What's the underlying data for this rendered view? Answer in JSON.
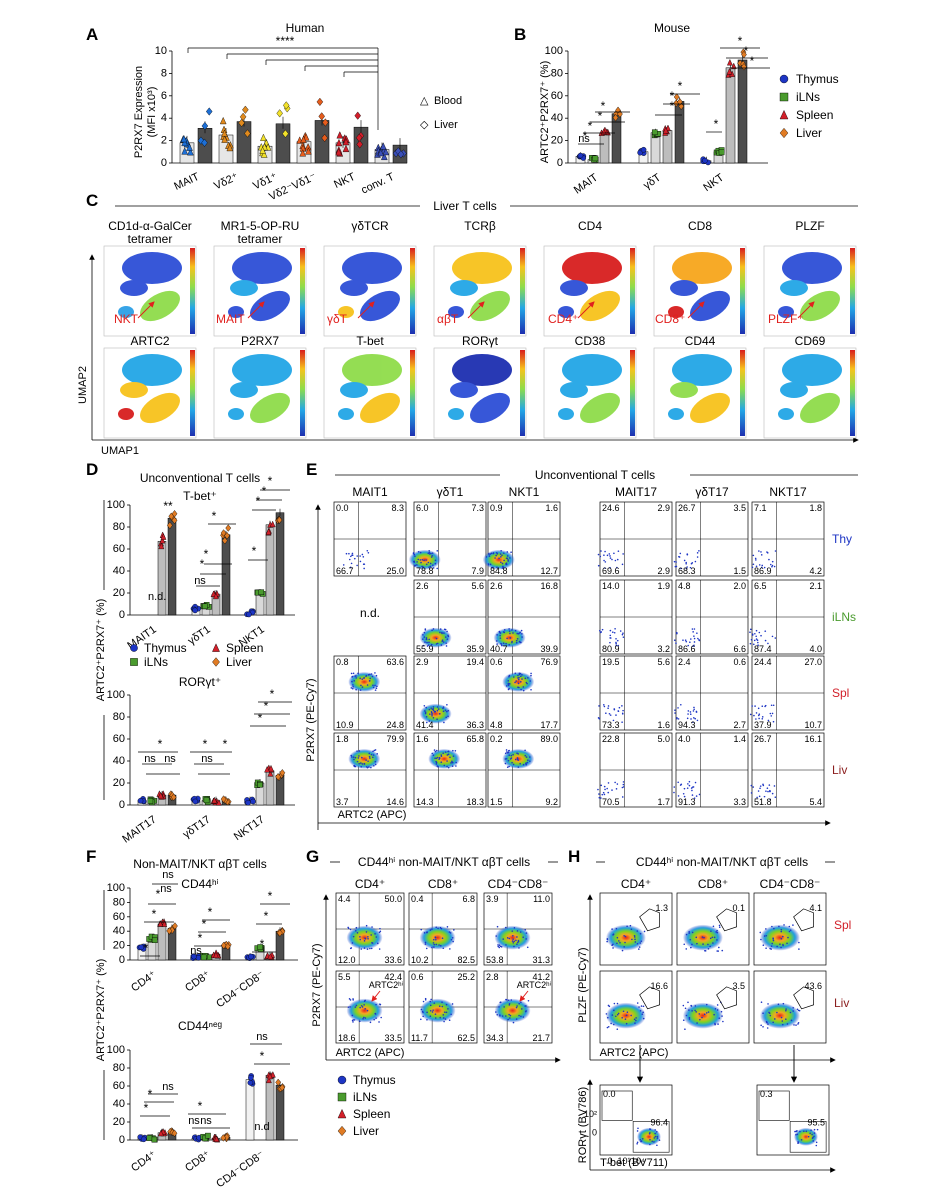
{
  "colors": {
    "thymus": "#1d35c4",
    "ilns": "#4a9b2e",
    "spleen": "#d2202a",
    "liver": "#e07b24",
    "barLight": "#d9d9d9",
    "barDark": "#4d4d4d",
    "red": "#e0201e"
  },
  "panelA": {
    "letter": "A",
    "title": "Human",
    "ylabel": "P2RX7 Expression",
    "ylabel2": "(MFI x10³)",
    "yticks": [
      "0",
      "2",
      "4",
      "6",
      "8",
      "10"
    ],
    "ylim": [
      0,
      10
    ],
    "sig": "****",
    "legend": [
      {
        "symbol": "△",
        "label": "Blood"
      },
      {
        "symbol": "◇",
        "label": "Liver"
      }
    ],
    "chart_data": {
      "type": "bar",
      "ylim": [
        0,
        10
      ],
      "categories": [
        "MAIT",
        "Vδ2⁺",
        "Vδ1⁺",
        "Vδ2⁻Vδ1⁻",
        "NKT",
        "conv. T"
      ],
      "series": [
        {
          "name": "Blood",
          "values": [
            1.8,
            2.5,
            1.5,
            1.9,
            1.8,
            1.2
          ]
        },
        {
          "name": "Liver",
          "values": [
            3.1,
            3.7,
            3.5,
            3.8,
            3.2,
            1.6
          ]
        }
      ]
    }
  },
  "panelB": {
    "letter": "B",
    "title": "Mouse",
    "ylabel": "ARTC2⁺P2RX7⁺ (%)",
    "yticks": [
      "0",
      "20",
      "40",
      "60",
      "80",
      "100"
    ],
    "ns": "ns",
    "star": "*",
    "legend": [
      {
        "label": "Thymus",
        "color": "thymus"
      },
      {
        "label": "iLNs",
        "color": "ilns"
      },
      {
        "label": "Spleen",
        "color": "spleen"
      },
      {
        "label": "Liver",
        "color": "liver"
      }
    ],
    "chart_data": {
      "type": "bar",
      "ylim": [
        0,
        100
      ],
      "categories": [
        "MAIT",
        "γδT",
        "NKT"
      ],
      "series": [
        {
          "name": "Thymus",
          "values": [
            6,
            10,
            2
          ]
        },
        {
          "name": "iLNs",
          "values": [
            3,
            27,
            10
          ]
        },
        {
          "name": "Spleen",
          "values": [
            27,
            29,
            85
          ]
        },
        {
          "name": "Liver",
          "values": [
            44,
            55,
            92
          ]
        }
      ]
    }
  },
  "panelC": {
    "letter": "C",
    "header": "Liver T cells",
    "yaxis": "UMAP2",
    "xaxis": "UMAP1",
    "row1": [
      {
        "title": "CD1d-α-GalCer",
        "title2": "tetramer",
        "tag": "NKT"
      },
      {
        "title": "MR1-5-OP-RU",
        "title2": "tetramer",
        "tag": "MAIT"
      },
      {
        "title": "γδTCR",
        "tag": "γδT"
      },
      {
        "title": "TCRβ",
        "tag": "αβT"
      },
      {
        "title": "CD4",
        "tag": "CD4⁺"
      },
      {
        "title": "CD8",
        "tag": "CD8⁺"
      },
      {
        "title": "PLZF",
        "tag": "PLZF⁺"
      }
    ],
    "row2": [
      {
        "title": "ARTC2"
      },
      {
        "title": "P2RX7"
      },
      {
        "title": "T-bet"
      },
      {
        "title": "RORγt"
      },
      {
        "title": "CD38"
      },
      {
        "title": "CD44"
      },
      {
        "title": "CD69"
      }
    ]
  },
  "panelD": {
    "letter": "D",
    "title": "Unconventional T cells",
    "ylabel": "ARTC2⁺P2RX7⁺ (%)",
    "top_title": "T-bet⁺",
    "bottom_title": "RORγt⁺",
    "yticks": [
      "0",
      "20",
      "40",
      "60",
      "80",
      "100"
    ],
    "nd": "n.d.",
    "ns": "ns",
    "star": "*",
    "dstar": "**",
    "legend": [
      {
        "label": "Thymus",
        "color": "thymus"
      },
      {
        "label": "Spleen",
        "color": "spleen"
      },
      {
        "label": "iLNs",
        "color": "ilns"
      },
      {
        "label": "Liver",
        "color": "liver"
      }
    ],
    "chart_data": [
      {
        "type": "bar",
        "title": "T-bet⁺",
        "ylim": [
          0,
          100
        ],
        "categories": [
          "MAIT1",
          "γδT1",
          "NKT1"
        ],
        "series": [
          {
            "name": "Thymus",
            "values": [
              null,
              6,
              2
            ]
          },
          {
            "name": "iLNs",
            "values": [
              null,
              8,
              20
            ]
          },
          {
            "name": "Spleen",
            "values": [
              67,
              19,
              82
            ]
          },
          {
            "name": "Liver",
            "values": [
              88,
              73,
              93
            ]
          }
        ]
      },
      {
        "type": "bar",
        "title": "RORγt⁺",
        "ylim": [
          0,
          100
        ],
        "categories": [
          "MAIT17",
          "γδT17",
          "NKT17"
        ],
        "series": [
          {
            "name": "Thymus",
            "values": [
              4,
              4,
              4
            ]
          },
          {
            "name": "iLNs",
            "values": [
              4,
              4,
              20
            ]
          },
          {
            "name": "Spleen",
            "values": [
              9,
              4,
              31
            ]
          },
          {
            "name": "Liver",
            "values": [
              9,
              4,
              27
            ]
          }
        ]
      }
    ]
  },
  "panelE": {
    "letter": "E",
    "header": "Unconventional T cells",
    "yaxis": "P2RX7 (PE-Cy7)",
    "xaxis": "ARTC2 (APC)",
    "nd": "n.d.",
    "cols": [
      "MAIT1",
      "γδT1",
      "NKT1",
      "MAIT17",
      "γδT17",
      "NKT17"
    ],
    "rows": [
      "Thy",
      "iLNs",
      "Spl",
      "Liv"
    ],
    "quads": [
      [
        [
          "0.0",
          "8.3",
          "66.7",
          "25.0"
        ],
        [
          "6.0",
          "7.3",
          "78.8",
          "7.9"
        ],
        [
          "0.9",
          "1.6",
          "84.8",
          "12.7"
        ],
        [
          "24.6",
          "2.9",
          "69.6",
          "2.9"
        ],
        [
          "26.7",
          "3.5",
          "68.3",
          "1.5"
        ],
        [
          "7.1",
          "1.8",
          "86.9",
          "4.2"
        ]
      ],
      [
        null,
        [
          "2.6",
          "5.6",
          "55.9",
          "35.9"
        ],
        [
          "2.6",
          "16.8",
          "40.7",
          "39.9"
        ],
        [
          "14.0",
          "1.9",
          "80.9",
          "3.2"
        ],
        [
          "4.8",
          "2.0",
          "86.6",
          "6.6"
        ],
        [
          "6.5",
          "2.1",
          "87.4",
          "4.0"
        ]
      ],
      [
        [
          "0.8",
          "63.6",
          "10.9",
          "24.8"
        ],
        [
          "2.9",
          "19.4",
          "41.4",
          "36.3"
        ],
        [
          "0.6",
          "76.9",
          "4.8",
          "17.7"
        ],
        [
          "19.5",
          "5.6",
          "73.3",
          "1.6"
        ],
        [
          "2.4",
          "0.6",
          "94.3",
          "2.7"
        ],
        [
          "24.4",
          "27.0",
          "37.9",
          "10.7"
        ]
      ],
      [
        [
          "1.8",
          "79.9",
          "3.7",
          "14.6"
        ],
        [
          "1.6",
          "65.8",
          "14.3",
          "18.3"
        ],
        [
          "0.2",
          "89.0",
          "1.5",
          "9.2"
        ],
        [
          "22.8",
          "5.0",
          "70.5",
          "1.7"
        ],
        [
          "4.0",
          "1.4",
          "91.3",
          "3.3"
        ],
        [
          "26.7",
          "16.1",
          "51.8",
          "5.4"
        ]
      ]
    ]
  },
  "panelF": {
    "letter": "F",
    "title": "Non-MAIT/NKT αβT cells",
    "ylabel": "ARTC2⁺P2RX7⁺ (%)",
    "top_title": "CD44ʰⁱ",
    "bottom_title": "CD44ⁿᵉᵍ",
    "yticks": [
      "0",
      "20",
      "40",
      "60",
      "80",
      "100"
    ],
    "nd": "n.d",
    "ns": "ns",
    "star": "*",
    "legend": [
      {
        "label": "Thymus",
        "color": "thymus"
      },
      {
        "label": "iLNs",
        "color": "ilns"
      },
      {
        "label": "Spleen",
        "color": "spleen"
      },
      {
        "label": "Liver",
        "color": "liver"
      }
    ],
    "chart_data": [
      {
        "type": "bar",
        "title": "CD44hi",
        "ylim": [
          0,
          100
        ],
        "categories": [
          "CD4⁺",
          "CD8⁺",
          "CD4⁻CD8⁻"
        ],
        "series": [
          {
            "name": "Thymus",
            "values": [
              17,
              4,
              4
            ]
          },
          {
            "name": "iLNs",
            "values": [
              30,
              4,
              16
            ]
          },
          {
            "name": "Spleen",
            "values": [
              50,
              8,
              6
            ]
          },
          {
            "name": "Liver",
            "values": [
              44,
              20,
              40
            ]
          }
        ]
      },
      {
        "type": "bar",
        "title": "CD44neg",
        "ylim": [
          0,
          100
        ],
        "categories": [
          "CD4⁺",
          "CD8⁺",
          "CD4⁻CD8⁻"
        ],
        "series": [
          {
            "name": "Thymus",
            "values": [
              2,
              2,
              67
            ]
          },
          {
            "name": "iLNs",
            "values": [
              2,
              3,
              null
            ]
          },
          {
            "name": "Spleen",
            "values": [
              8,
              2,
              72
            ]
          },
          {
            "name": "Liver",
            "values": [
              8,
              3,
              61
            ]
          }
        ]
      }
    ]
  },
  "panelG": {
    "letter": "G",
    "header": "CD44ʰⁱ non-MAIT/NKT αβT cells",
    "yaxis": "P2RX7 (PE-Cy7)",
    "xaxis": "ARTC2 (APC)",
    "arrow": "ARTC2ʰⁱ",
    "cols": [
      "CD4⁺",
      "CD8⁺",
      "CD4⁻CD8⁻"
    ],
    "quads": [
      [
        [
          "4.4",
          "50.0",
          "12.0",
          "33.6"
        ],
        [
          "0.4",
          "6.8",
          "10.2",
          "82.5"
        ],
        [
          "3.9",
          "11.0",
          "53.8",
          "31.3"
        ]
      ],
      [
        [
          "5.5",
          "42.4",
          "18.6",
          "33.5"
        ],
        [
          "0.6",
          "25.2",
          "11.7",
          "62.5"
        ],
        [
          "2.8",
          "41.2",
          "34.3",
          "21.7"
        ]
      ]
    ],
    "legend": [
      {
        "label": "Thymus",
        "color": "thymus"
      },
      {
        "label": "iLNs",
        "color": "ilns"
      },
      {
        "label": "Spleen",
        "color": "spleen"
      },
      {
        "label": "Liver",
        "color": "liver"
      }
    ]
  },
  "panelH": {
    "letter": "H",
    "header": "CD44ʰⁱ non-MAIT/NKT αβT cells",
    "yaxis": "PLZF (PE-Cy7)",
    "xaxis": "ARTC2 (APC)",
    "cols": [
      "CD4⁺",
      "CD8⁺",
      "CD4⁻CD8⁻"
    ],
    "rows": [
      "Spl",
      "Liv"
    ],
    "gates": [
      [
        "1.3",
        "0.1",
        "4.1"
      ],
      [
        "16.6",
        "3.5",
        "43.6"
      ]
    ],
    "sub_yaxis": "RORγt (BV786)",
    "sub_xaxis": "T-bet (BV711)",
    "sub": [
      {
        "tl": "0.0",
        "br": "96.4"
      },
      {
        "tl": "0.3",
        "br": "95.5"
      }
    ],
    "sub_ticks": [
      "0",
      "10¹",
      "10⁴"
    ],
    "sub_yticks": [
      "10²",
      "0"
    ]
  }
}
